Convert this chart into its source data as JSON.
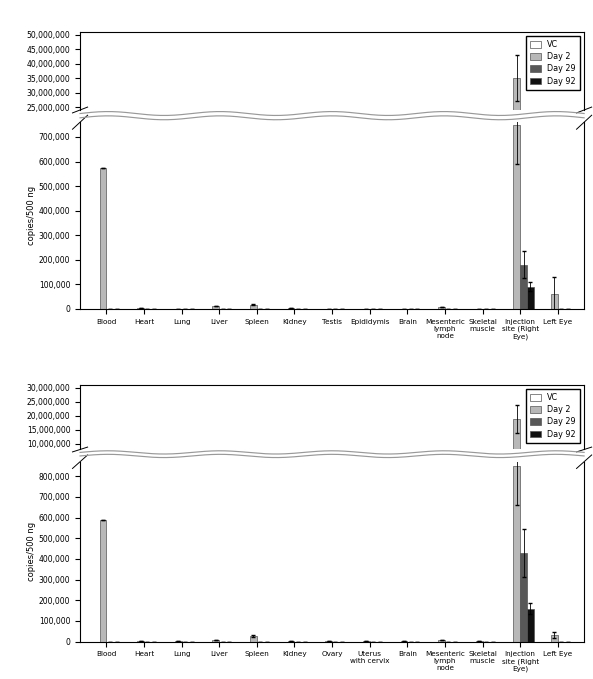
{
  "panel_A": {
    "categories": [
      "Blood",
      "Heart",
      "Lung",
      "Liver",
      "Spleen",
      "Kidney",
      "Testis",
      "Epididymis",
      "Brain",
      "Mesenteric\nlymph\nnode",
      "Skeletal\nmuscle",
      "Injection\nsite (Right\nEye)",
      "Left Eye"
    ],
    "VC": [
      0,
      0,
      0,
      0,
      0,
      0,
      0,
      0,
      0,
      0,
      0,
      0,
      0
    ],
    "Day2": [
      575000,
      4000,
      1500,
      14000,
      18000,
      2500,
      1500,
      1500,
      1500,
      7000,
      1500,
      750000,
      60000
    ],
    "Day29": [
      0,
      0,
      0,
      0,
      0,
      0,
      0,
      0,
      0,
      0,
      0,
      180000,
      0
    ],
    "Day92": [
      0,
      0,
      0,
      0,
      0,
      0,
      0,
      0,
      0,
      0,
      0,
      90000,
      0
    ],
    "Day2_inj_high": 35000000,
    "inj_idx": 11,
    "Day2_err": [
      0,
      0,
      0,
      0,
      3000,
      0,
      0,
      0,
      0,
      0,
      0,
      160000,
      70000
    ],
    "Day29_err": [
      0,
      0,
      0,
      0,
      0,
      0,
      0,
      0,
      0,
      0,
      0,
      55000,
      0
    ],
    "Day92_err": [
      0,
      0,
      0,
      0,
      0,
      0,
      0,
      0,
      0,
      0,
      0,
      18000,
      0
    ],
    "inj_high_err": 8000000,
    "upper_ylim": [
      24000000,
      51000000
    ],
    "lower_ylim": [
      0,
      760000
    ],
    "upper_yticks": [
      25000000,
      30000000,
      35000000,
      40000000,
      45000000,
      50000000
    ],
    "lower_yticks": [
      0,
      100000,
      200000,
      300000,
      400000,
      500000,
      600000,
      700000
    ],
    "ylabel": "copies/500 ng"
  },
  "panel_B": {
    "categories": [
      "Blood",
      "Heart",
      "Lung",
      "Liver",
      "Spleen",
      "Kidney",
      "Ovary",
      "Uterus\nwith cervix",
      "Brain",
      "Mesenteric\nlymph\nnode",
      "Skeletal\nmuscle",
      "Injection\nsite (Right\nEye)",
      "Left Eye"
    ],
    "VC": [
      0,
      0,
      0,
      0,
      0,
      0,
      0,
      0,
      0,
      0,
      0,
      0,
      0
    ],
    "Day2": [
      590000,
      3000,
      1500,
      9000,
      27000,
      2500,
      1500,
      4000,
      1500,
      9000,
      2500,
      850000,
      33000
    ],
    "Day29": [
      0,
      0,
      0,
      0,
      0,
      0,
      0,
      0,
      0,
      0,
      0,
      430000,
      0
    ],
    "Day92": [
      0,
      0,
      0,
      0,
      0,
      0,
      0,
      0,
      0,
      0,
      0,
      160000,
      0
    ],
    "Day2_inj_high": 19000000,
    "inj_idx": 11,
    "Day2_err": [
      0,
      0,
      0,
      0,
      5000,
      0,
      0,
      0,
      0,
      0,
      0,
      190000,
      13000
    ],
    "Day29_err": [
      0,
      0,
      0,
      0,
      0,
      0,
      0,
      0,
      0,
      0,
      0,
      115000,
      0
    ],
    "Day92_err": [
      0,
      0,
      0,
      0,
      0,
      0,
      0,
      0,
      0,
      0,
      0,
      28000,
      0
    ],
    "inj_high_err": 5000000,
    "upper_ylim": [
      8000000,
      31000000
    ],
    "lower_ylim": [
      0,
      870000
    ],
    "upper_yticks": [
      10000000,
      15000000,
      20000000,
      25000000,
      30000000
    ],
    "lower_yticks": [
      0,
      100000,
      200000,
      300000,
      400000,
      500000,
      600000,
      700000,
      800000
    ],
    "ylabel": "copies/500 ng"
  },
  "bar_colors": {
    "VC": "#ffffff",
    "Day2": "#b8b8b8",
    "Day29": "#585858",
    "Day92": "#101010"
  },
  "legend_labels": [
    "VC",
    "Day 2",
    "Day 29",
    "Day 92"
  ],
  "bar_width": 0.18,
  "edgecolor": "#555555"
}
